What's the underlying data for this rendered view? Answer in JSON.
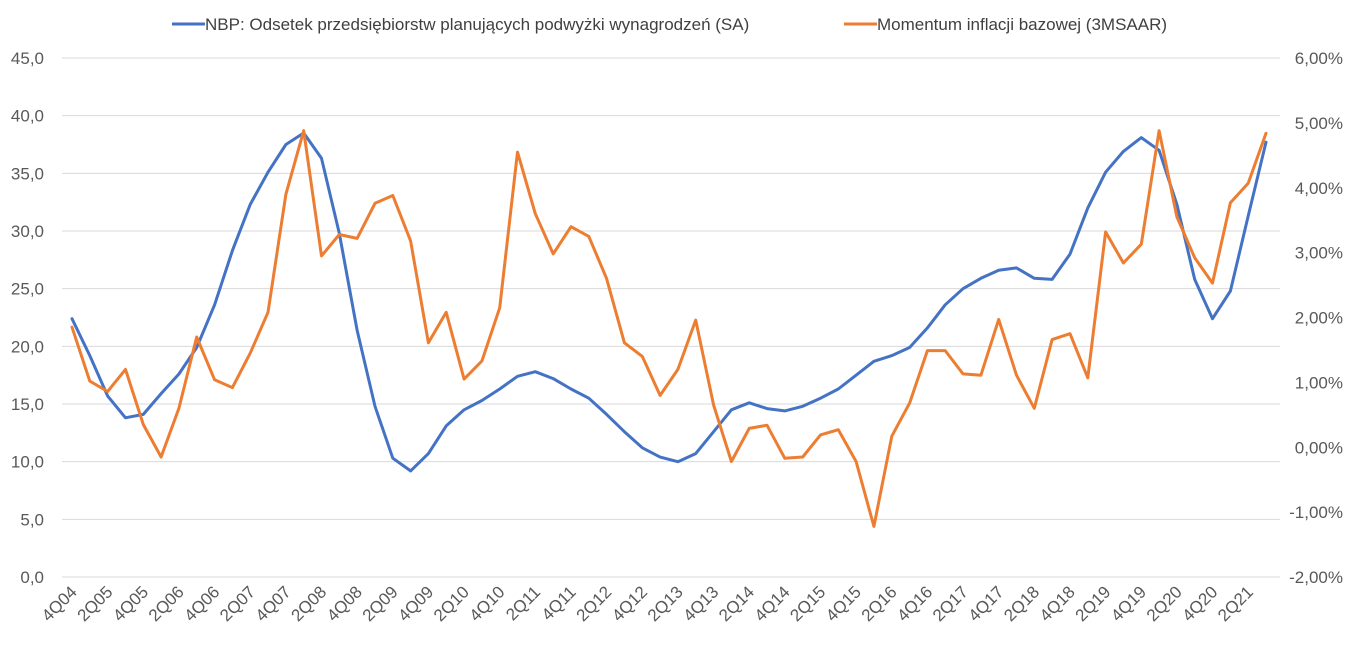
{
  "chart_data": {
    "type": "line",
    "title": "",
    "legend_position": "top",
    "series": [
      {
        "name": "NBP: Odsetek przedsiębiorstw planujących podwyżki wynagrodzeń (SA)",
        "axis": "left",
        "color": "#4472C4",
        "values": [
          22.4,
          19.2,
          15.7,
          13.8,
          14.1,
          15.9,
          17.6,
          19.9,
          23.6,
          28.3,
          32.3,
          35.1,
          37.5,
          38.5,
          36.3,
          29.8,
          21.4,
          14.8,
          10.3,
          9.2,
          10.7,
          13.1,
          14.5,
          15.3,
          16.3,
          17.4,
          17.8,
          17.2,
          16.3,
          15.5,
          14.1,
          12.6,
          11.2,
          10.4,
          10.0,
          10.7,
          12.6,
          14.5,
          15.1,
          14.6,
          14.4,
          14.8,
          15.5,
          16.3,
          17.5,
          18.7,
          19.2,
          19.9,
          21.6,
          23.6,
          25.0,
          25.9,
          26.6,
          26.8,
          25.9,
          25.8,
          28.0,
          32.0,
          35.1,
          36.9,
          38.1,
          37.0,
          32.3,
          25.8,
          22.4,
          24.8,
          31.3,
          37.7
        ]
      },
      {
        "name": "Momentum inflacji bazowej (3MSAAR)",
        "axis": "right",
        "color": "#ED7D31",
        "values": [
          1.85,
          1.02,
          0.86,
          1.2,
          0.35,
          -0.15,
          0.6,
          1.7,
          1.04,
          0.92,
          1.45,
          2.08,
          3.9,
          4.88,
          2.95,
          3.28,
          3.22,
          3.76,
          3.88,
          3.18,
          1.61,
          2.08,
          1.05,
          1.33,
          2.15,
          4.55,
          3.6,
          2.98,
          3.4,
          3.25,
          2.6,
          1.61,
          1.4,
          0.8,
          1.2,
          1.96,
          0.65,
          -0.22,
          0.29,
          0.34,
          -0.17,
          -0.15,
          0.19,
          0.27,
          -0.22,
          -1.22,
          0.17,
          0.68,
          1.49,
          1.49,
          1.13,
          1.11,
          1.97,
          1.11,
          0.6,
          1.66,
          1.75,
          1.07,
          3.32,
          2.84,
          3.13,
          4.88,
          3.55,
          2.92,
          2.53,
          3.77,
          4.07,
          4.84
        ]
      }
    ],
    "x_tick_labels": [
      "4Q04",
      "2Q05",
      "4Q05",
      "2Q06",
      "4Q06",
      "2Q07",
      "4Q07",
      "2Q08",
      "4Q08",
      "2Q09",
      "4Q09",
      "2Q10",
      "4Q10",
      "2Q11",
      "4Q11",
      "2Q12",
      "4Q12",
      "2Q13",
      "4Q13",
      "2Q14",
      "4Q14",
      "2Q15",
      "4Q15",
      "2Q16",
      "4Q16",
      "2Q17",
      "4Q17",
      "2Q18",
      "4Q18",
      "2Q19",
      "4Q19",
      "2Q20",
      "4Q20",
      "2Q21"
    ],
    "x_tick_every_n_points": 2,
    "y_left": {
      "ylim": [
        0,
        45
      ],
      "ticks": [
        0,
        5,
        10,
        15,
        20,
        25,
        30,
        35,
        40,
        45
      ],
      "tick_labels": [
        "0,0",
        "5,0",
        "10,0",
        "15,0",
        "20,0",
        "25,0",
        "30,0",
        "35,0",
        "40,0",
        "45,0"
      ]
    },
    "y_right": {
      "ylim": [
        -2,
        6
      ],
      "ticks": [
        -2,
        -1,
        0,
        1,
        2,
        3,
        4,
        5,
        6
      ],
      "tick_labels": [
        "-2,00%",
        "-1,00%",
        "0,00%",
        "1,00%",
        "2,00%",
        "3,00%",
        "4,00%",
        "5,00%",
        "6,00%"
      ]
    },
    "grid": true
  }
}
